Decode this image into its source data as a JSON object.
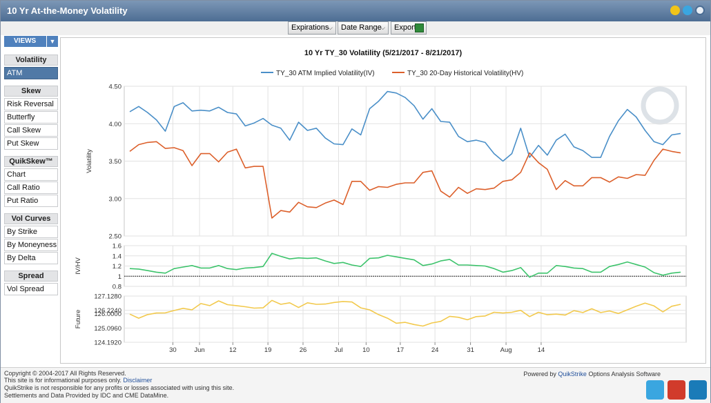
{
  "window": {
    "title": "10 Yr At-the-Money Volatility"
  },
  "toolbar": {
    "expirations_label": "Expirations",
    "date_range_label": "Date Range",
    "export_label": "Export"
  },
  "sidebar": {
    "views_label": "VIEWS",
    "sections": [
      {
        "title": "Volatility",
        "items": [
          "ATM"
        ]
      },
      {
        "title": "Skew",
        "items": [
          "Risk Reversal",
          "Butterfly",
          "Call Skew",
          "Put Skew"
        ]
      },
      {
        "title": "QuikSkew™",
        "items": [
          "Chart",
          "Call Ratio",
          "Put Ratio"
        ]
      },
      {
        "title": "Vol Curves",
        "items": [
          "By Strike",
          "By Moneyness",
          "By Delta"
        ]
      },
      {
        "title": "Spread",
        "items": [
          "Vol Spread"
        ]
      }
    ],
    "active_item": "ATM"
  },
  "chart_data": [
    {
      "type": "line",
      "title": "10 Yr TY_30 Volatility (5/21/2017 - 8/21/2017)",
      "ylabel": "Volatility",
      "ylim": [
        2.5,
        4.5
      ],
      "yticks": [
        "4.50",
        "4.00",
        "3.50",
        "3.00",
        "2.50"
      ],
      "xticks": [
        "30",
        "Jun",
        "12",
        "19",
        "26",
        "Jul",
        "10",
        "17",
        "24",
        "31",
        "Aug",
        "14"
      ],
      "grid": true,
      "legend": "top",
      "series": [
        {
          "name": "TY_30 ATM Implied Volatility(IV)",
          "color": "#4a8fc8",
          "values": [
            4.16,
            4.23,
            4.15,
            4.05,
            3.9,
            4.23,
            4.28,
            4.17,
            4.18,
            4.17,
            4.22,
            4.15,
            4.13,
            3.97,
            4.01,
            4.07,
            3.98,
            3.94,
            3.78,
            4.02,
            3.91,
            3.94,
            3.81,
            3.73,
            3.72,
            3.93,
            3.85,
            4.2,
            4.3,
            4.43,
            4.41,
            4.35,
            4.24,
            4.06,
            4.2,
            4.03,
            4.02,
            3.83,
            3.76,
            3.78,
            3.75,
            3.6,
            3.5,
            3.6,
            3.94,
            3.55,
            3.71,
            3.58,
            3.78,
            3.86,
            3.69,
            3.64,
            3.55,
            3.55,
            3.83,
            4.04,
            4.19,
            4.09,
            3.91,
            3.76,
            3.72,
            3.85,
            3.87
          ]
        },
        {
          "name": "TY_30 20-Day Historical Volatility(HV)",
          "color": "#dc5f2a",
          "values": [
            3.63,
            3.72,
            3.75,
            3.76,
            3.67,
            3.68,
            3.64,
            3.44,
            3.6,
            3.6,
            3.49,
            3.62,
            3.66,
            3.41,
            3.43,
            3.43,
            2.74,
            2.84,
            2.82,
            2.95,
            2.89,
            2.88,
            2.94,
            2.98,
            2.92,
            3.23,
            3.23,
            3.11,
            3.16,
            3.15,
            3.19,
            3.21,
            3.21,
            3.35,
            3.37,
            3.1,
            3.02,
            3.15,
            3.07,
            3.13,
            3.12,
            3.14,
            3.23,
            3.25,
            3.35,
            3.61,
            3.48,
            3.39,
            3.12,
            3.24,
            3.17,
            3.17,
            3.28,
            3.28,
            3.22,
            3.29,
            3.27,
            3.32,
            3.31,
            3.51,
            3.66,
            3.63,
            3.61
          ]
        }
      ]
    },
    {
      "type": "line",
      "ylabel": "IV/HV",
      "ylim": [
        0.8,
        1.6
      ],
      "yticks": [
        "1.6",
        "1.4",
        "1.2",
        "1",
        "0.8"
      ],
      "reference_line": 1,
      "series": [
        {
          "color": "#3cc36b",
          "values": [
            1.15,
            1.14,
            1.11,
            1.08,
            1.06,
            1.15,
            1.18,
            1.21,
            1.16,
            1.16,
            1.21,
            1.15,
            1.13,
            1.16,
            1.17,
            1.19,
            1.45,
            1.39,
            1.34,
            1.36,
            1.35,
            1.36,
            1.3,
            1.25,
            1.27,
            1.22,
            1.19,
            1.35,
            1.36,
            1.41,
            1.38,
            1.35,
            1.32,
            1.21,
            1.24,
            1.3,
            1.33,
            1.22,
            1.22,
            1.21,
            1.2,
            1.15,
            1.08,
            1.11,
            1.17,
            0.98,
            1.06,
            1.06,
            1.21,
            1.19,
            1.16,
            1.15,
            1.08,
            1.08,
            1.19,
            1.23,
            1.28,
            1.23,
            1.18,
            1.07,
            1.02,
            1.06,
            1.08
          ]
        }
      ]
    },
    {
      "type": "line",
      "ylabel": "Future",
      "ylim": [
        124.192,
        127.128
      ],
      "yticks": [
        "127.1280",
        "126.2240",
        "126.0000",
        "125.0960",
        "124.1920"
      ],
      "series": [
        {
          "color": "#f2c94c",
          "values": [
            125.98,
            125.72,
            125.95,
            126.05,
            126.06,
            126.21,
            126.35,
            126.25,
            126.65,
            126.52,
            126.82,
            126.58,
            126.52,
            126.45,
            126.36,
            126.38,
            126.85,
            126.6,
            126.7,
            126.4,
            126.7,
            126.6,
            126.62,
            126.72,
            126.78,
            126.75,
            126.38,
            126.25,
            125.95,
            125.72,
            125.4,
            125.46,
            125.32,
            125.22,
            125.42,
            125.52,
            125.84,
            125.78,
            125.62,
            125.82,
            125.86,
            126.1,
            126.05,
            126.1,
            126.22,
            125.82,
            126.1,
            125.94,
            125.98,
            125.92,
            126.2,
            126.08,
            126.32,
            126.08,
            126.18,
            126.02,
            126.25,
            126.48,
            126.68,
            126.5,
            126.12,
            126.48,
            126.6
          ]
        }
      ]
    }
  ],
  "footer": {
    "copyright": "Copyright © 2004-2017 All Rights Reserved.",
    "info_text": "This site is for informational purposes only.",
    "disclaimer_link": "Disclaimer",
    "liability": "QuikStrike is not responsible for any profits or losses associated with using this site.",
    "settlements": "Settlements and Data Provided by IDC and CME DataMine.",
    "powered_prefix": "Powered by",
    "powered_brand": "QuikStrike",
    "powered_suffix": "Options Analysis Software"
  }
}
